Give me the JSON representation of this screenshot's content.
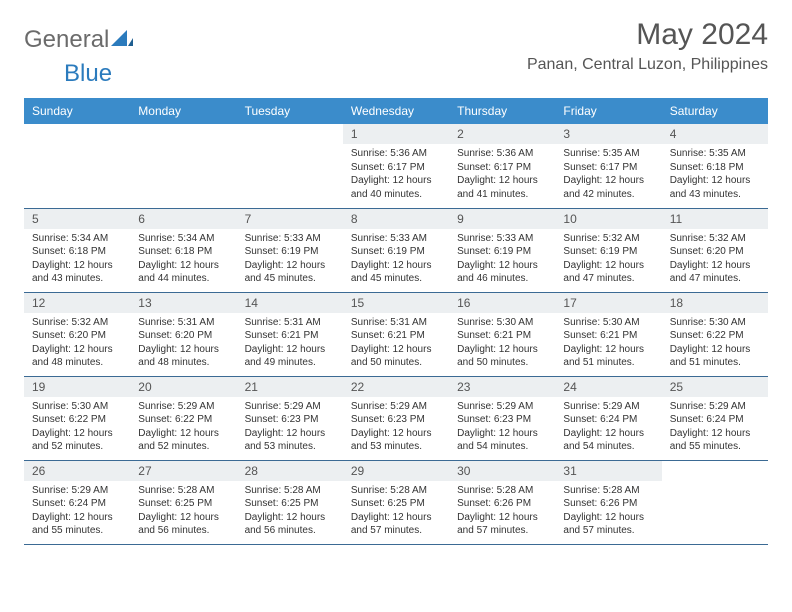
{
  "brand": {
    "text1": "General",
    "text2": "Blue"
  },
  "title": "May 2024",
  "location": "Panan, Central Luzon, Philippines",
  "colors": {
    "header_bg": "#3b8ccb",
    "header_text": "#ffffff",
    "daynum_bg": "#eceff1",
    "border": "#3b6a94",
    "brand_gray": "#6b6b6b",
    "brand_blue": "#2b7bbd"
  },
  "weekdays": [
    "Sunday",
    "Monday",
    "Tuesday",
    "Wednesday",
    "Thursday",
    "Friday",
    "Saturday"
  ],
  "weeks": [
    [
      {
        "day": ""
      },
      {
        "day": ""
      },
      {
        "day": ""
      },
      {
        "day": "1",
        "sunrise": "Sunrise: 5:36 AM",
        "sunset": "Sunset: 6:17 PM",
        "daylight": "Daylight: 12 hours and 40 minutes."
      },
      {
        "day": "2",
        "sunrise": "Sunrise: 5:36 AM",
        "sunset": "Sunset: 6:17 PM",
        "daylight": "Daylight: 12 hours and 41 minutes."
      },
      {
        "day": "3",
        "sunrise": "Sunrise: 5:35 AM",
        "sunset": "Sunset: 6:17 PM",
        "daylight": "Daylight: 12 hours and 42 minutes."
      },
      {
        "day": "4",
        "sunrise": "Sunrise: 5:35 AM",
        "sunset": "Sunset: 6:18 PM",
        "daylight": "Daylight: 12 hours and 43 minutes."
      }
    ],
    [
      {
        "day": "5",
        "sunrise": "Sunrise: 5:34 AM",
        "sunset": "Sunset: 6:18 PM",
        "daylight": "Daylight: 12 hours and 43 minutes."
      },
      {
        "day": "6",
        "sunrise": "Sunrise: 5:34 AM",
        "sunset": "Sunset: 6:18 PM",
        "daylight": "Daylight: 12 hours and 44 minutes."
      },
      {
        "day": "7",
        "sunrise": "Sunrise: 5:33 AM",
        "sunset": "Sunset: 6:19 PM",
        "daylight": "Daylight: 12 hours and 45 minutes."
      },
      {
        "day": "8",
        "sunrise": "Sunrise: 5:33 AM",
        "sunset": "Sunset: 6:19 PM",
        "daylight": "Daylight: 12 hours and 45 minutes."
      },
      {
        "day": "9",
        "sunrise": "Sunrise: 5:33 AM",
        "sunset": "Sunset: 6:19 PM",
        "daylight": "Daylight: 12 hours and 46 minutes."
      },
      {
        "day": "10",
        "sunrise": "Sunrise: 5:32 AM",
        "sunset": "Sunset: 6:19 PM",
        "daylight": "Daylight: 12 hours and 47 minutes."
      },
      {
        "day": "11",
        "sunrise": "Sunrise: 5:32 AM",
        "sunset": "Sunset: 6:20 PM",
        "daylight": "Daylight: 12 hours and 47 minutes."
      }
    ],
    [
      {
        "day": "12",
        "sunrise": "Sunrise: 5:32 AM",
        "sunset": "Sunset: 6:20 PM",
        "daylight": "Daylight: 12 hours and 48 minutes."
      },
      {
        "day": "13",
        "sunrise": "Sunrise: 5:31 AM",
        "sunset": "Sunset: 6:20 PM",
        "daylight": "Daylight: 12 hours and 48 minutes."
      },
      {
        "day": "14",
        "sunrise": "Sunrise: 5:31 AM",
        "sunset": "Sunset: 6:21 PM",
        "daylight": "Daylight: 12 hours and 49 minutes."
      },
      {
        "day": "15",
        "sunrise": "Sunrise: 5:31 AM",
        "sunset": "Sunset: 6:21 PM",
        "daylight": "Daylight: 12 hours and 50 minutes."
      },
      {
        "day": "16",
        "sunrise": "Sunrise: 5:30 AM",
        "sunset": "Sunset: 6:21 PM",
        "daylight": "Daylight: 12 hours and 50 minutes."
      },
      {
        "day": "17",
        "sunrise": "Sunrise: 5:30 AM",
        "sunset": "Sunset: 6:21 PM",
        "daylight": "Daylight: 12 hours and 51 minutes."
      },
      {
        "day": "18",
        "sunrise": "Sunrise: 5:30 AM",
        "sunset": "Sunset: 6:22 PM",
        "daylight": "Daylight: 12 hours and 51 minutes."
      }
    ],
    [
      {
        "day": "19",
        "sunrise": "Sunrise: 5:30 AM",
        "sunset": "Sunset: 6:22 PM",
        "daylight": "Daylight: 12 hours and 52 minutes."
      },
      {
        "day": "20",
        "sunrise": "Sunrise: 5:29 AM",
        "sunset": "Sunset: 6:22 PM",
        "daylight": "Daylight: 12 hours and 52 minutes."
      },
      {
        "day": "21",
        "sunrise": "Sunrise: 5:29 AM",
        "sunset": "Sunset: 6:23 PM",
        "daylight": "Daylight: 12 hours and 53 minutes."
      },
      {
        "day": "22",
        "sunrise": "Sunrise: 5:29 AM",
        "sunset": "Sunset: 6:23 PM",
        "daylight": "Daylight: 12 hours and 53 minutes."
      },
      {
        "day": "23",
        "sunrise": "Sunrise: 5:29 AM",
        "sunset": "Sunset: 6:23 PM",
        "daylight": "Daylight: 12 hours and 54 minutes."
      },
      {
        "day": "24",
        "sunrise": "Sunrise: 5:29 AM",
        "sunset": "Sunset: 6:24 PM",
        "daylight": "Daylight: 12 hours and 54 minutes."
      },
      {
        "day": "25",
        "sunrise": "Sunrise: 5:29 AM",
        "sunset": "Sunset: 6:24 PM",
        "daylight": "Daylight: 12 hours and 55 minutes."
      }
    ],
    [
      {
        "day": "26",
        "sunrise": "Sunrise: 5:29 AM",
        "sunset": "Sunset: 6:24 PM",
        "daylight": "Daylight: 12 hours and 55 minutes."
      },
      {
        "day": "27",
        "sunrise": "Sunrise: 5:28 AM",
        "sunset": "Sunset: 6:25 PM",
        "daylight": "Daylight: 12 hours and 56 minutes."
      },
      {
        "day": "28",
        "sunrise": "Sunrise: 5:28 AM",
        "sunset": "Sunset: 6:25 PM",
        "daylight": "Daylight: 12 hours and 56 minutes."
      },
      {
        "day": "29",
        "sunrise": "Sunrise: 5:28 AM",
        "sunset": "Sunset: 6:25 PM",
        "daylight": "Daylight: 12 hours and 57 minutes."
      },
      {
        "day": "30",
        "sunrise": "Sunrise: 5:28 AM",
        "sunset": "Sunset: 6:26 PM",
        "daylight": "Daylight: 12 hours and 57 minutes."
      },
      {
        "day": "31",
        "sunrise": "Sunrise: 5:28 AM",
        "sunset": "Sunset: 6:26 PM",
        "daylight": "Daylight: 12 hours and 57 minutes."
      },
      {
        "day": ""
      }
    ]
  ]
}
